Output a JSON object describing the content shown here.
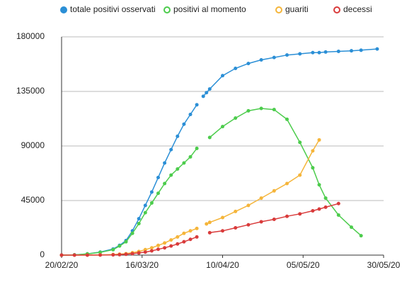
{
  "chart_data": {
    "type": "line",
    "x": [
      "2020-02-20",
      "2020-02-24",
      "2020-02-28",
      "2020-03-03",
      "2020-03-07",
      "2020-03-09",
      "2020-03-11",
      "2020-03-13",
      "2020-03-15",
      "2020-03-17",
      "2020-03-19",
      "2020-03-21",
      "2020-03-23",
      "2020-03-25",
      "2020-03-27",
      "2020-03-29",
      "2020-03-31",
      "2020-04-02",
      "2020-04-03",
      "2020-04-04",
      "2020-04-05",
      "2020-04-06",
      "2020-04-10",
      "2020-04-14",
      "2020-04-18",
      "2020-04-22",
      "2020-04-26",
      "2020-04-30",
      "2020-05-04",
      "2020-05-08",
      "2020-05-10",
      "2020-05-12",
      "2020-05-16",
      "2020-05-20",
      "2020-05-23",
      "2020-05-28"
    ],
    "series": [
      {
        "name": "totale positivi osservati",
        "color": "#2b8fd6",
        "values": [
          0,
          200,
          1000,
          2500,
          5000,
          8000,
          12000,
          20000,
          30000,
          41000,
          52000,
          64000,
          76000,
          87000,
          98000,
          108000,
          116000,
          124000,
          null,
          131000,
          134000,
          137000,
          148000,
          154000,
          158000,
          161000,
          163000,
          165000,
          166000,
          167000,
          167000,
          167500,
          168000,
          168500,
          169000,
          170000
        ]
      },
      {
        "name": "positivi al momento",
        "color": "#4ccc4c",
        "values": [
          0,
          200,
          1000,
          2300,
          4500,
          7500,
          11000,
          18000,
          26000,
          35000,
          43000,
          51000,
          59000,
          66000,
          71000,
          76000,
          81000,
          88000,
          null,
          null,
          null,
          97000,
          106000,
          113000,
          119000,
          121000,
          120000,
          112000,
          93000,
          72000,
          58000,
          47000,
          33000,
          23000,
          16000,
          null
        ]
      },
      {
        "name": "guariti",
        "color": "#f5b53a",
        "values": [
          0,
          0,
          50,
          200,
          500,
          800,
          1200,
          2000,
          3000,
          4500,
          6000,
          8000,
          10000,
          12500,
          15000,
          18000,
          20000,
          22000,
          null,
          null,
          25700,
          27000,
          31000,
          36000,
          41000,
          47000,
          53000,
          59000,
          66000,
          86000,
          95000,
          null,
          null,
          null,
          null,
          null
        ]
      },
      {
        "name": "decessi",
        "color": "#d93b3b",
        "values": [
          0,
          0,
          20,
          80,
          200,
          400,
          700,
          1200,
          1800,
          2500,
          3500,
          4800,
          6000,
          7500,
          9200,
          11000,
          13000,
          15000,
          null,
          null,
          null,
          18500,
          20000,
          22500,
          25000,
          27500,
          29500,
          32000,
          34000,
          36500,
          38000,
          39500,
          42500,
          null,
          null,
          null
        ]
      }
    ],
    "xlim": [
      "2020-02-20",
      "2020-05-30"
    ],
    "xticks": [
      {
        "value": "2020-02-20",
        "label": "20/02/20"
      },
      {
        "value": "2020-03-16",
        "label": "16/03/20"
      },
      {
        "value": "2020-04-10",
        "label": "10/04/20"
      },
      {
        "value": "2020-05-05",
        "label": "05/05/20"
      },
      {
        "value": "2020-05-30",
        "label": "30/05/20"
      }
    ],
    "ylim": [
      0,
      180000
    ],
    "yticks": [
      0,
      45000,
      90000,
      135000,
      180000
    ],
    "grid": true,
    "legend": "top"
  }
}
